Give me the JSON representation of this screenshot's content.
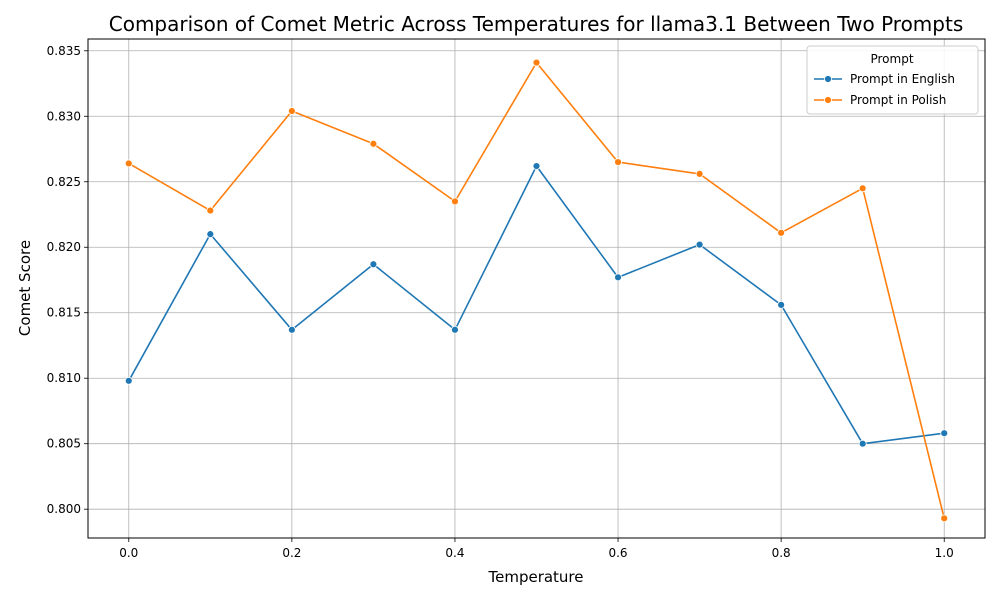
{
  "chart_data": {
    "type": "line",
    "title": "Comparison of Comet Metric Across Temperatures for llama3.1 Between Two Prompts",
    "xlabel": "Temperature",
    "ylabel": "Comet Score",
    "xlim": [
      -0.05,
      1.05
    ],
    "ylim": [
      0.7978,
      0.8359
    ],
    "xticks": [
      0.0,
      0.2,
      0.4,
      0.6,
      0.8,
      1.0
    ],
    "xtick_labels": [
      "0.0",
      "0.2",
      "0.4",
      "0.6",
      "0.8",
      "1.0"
    ],
    "yticks": [
      0.8,
      0.805,
      0.81,
      0.815,
      0.82,
      0.825,
      0.83,
      0.835
    ],
    "ytick_labels": [
      "0.800",
      "0.805",
      "0.810",
      "0.815",
      "0.820",
      "0.825",
      "0.830",
      "0.835"
    ],
    "grid": true,
    "legend": {
      "title": "Prompt",
      "position": "top-right"
    },
    "x": [
      0.0,
      0.1,
      0.2,
      0.3,
      0.4,
      0.5,
      0.6,
      0.7,
      0.8,
      0.9,
      1.0
    ],
    "series": [
      {
        "name": "Prompt in English",
        "color": "#1f77b4",
        "values": [
          0.8098,
          0.821,
          0.8137,
          0.8187,
          0.8137,
          0.8262,
          0.8177,
          0.8202,
          0.8156,
          0.805,
          0.8058
        ]
      },
      {
        "name": "Prompt in Polish",
        "color": "#ff7f0e",
        "values": [
          0.8264,
          0.8228,
          0.8304,
          0.8279,
          0.8235,
          0.8341,
          0.8265,
          0.8256,
          0.8211,
          0.8245,
          0.7993
        ]
      }
    ]
  }
}
